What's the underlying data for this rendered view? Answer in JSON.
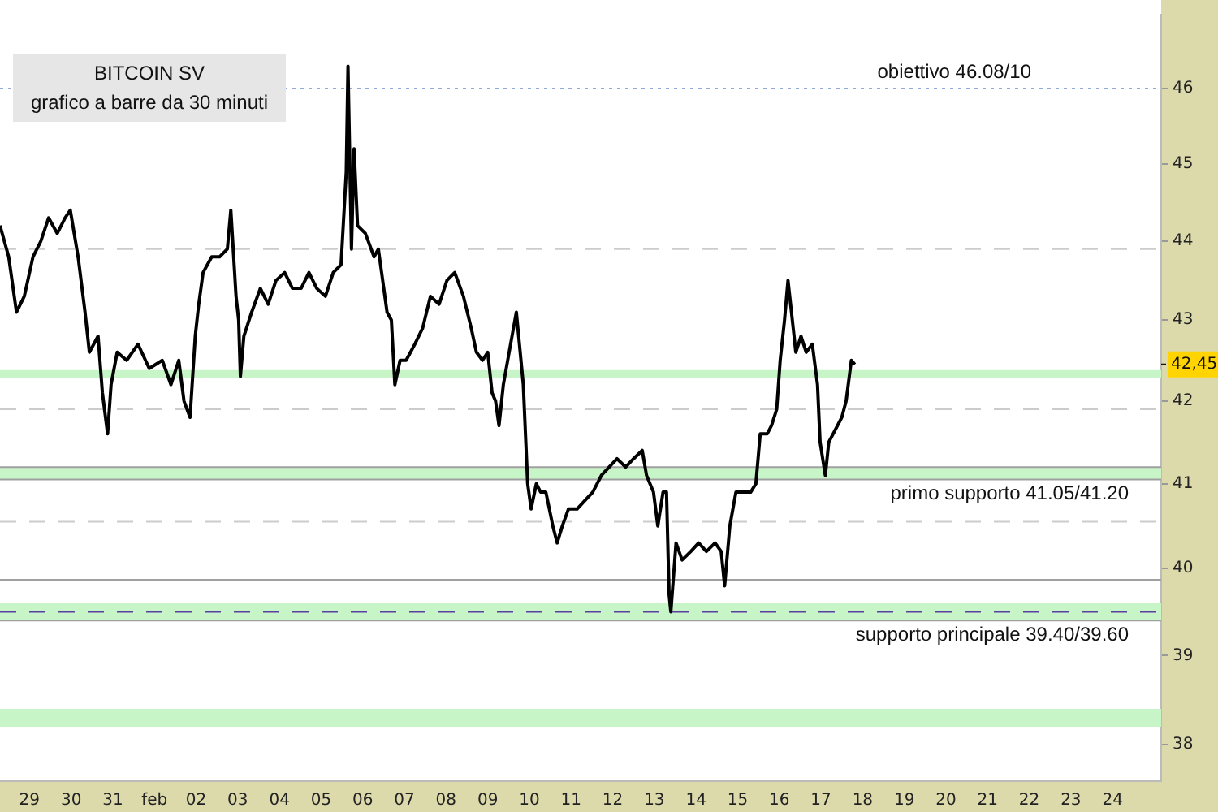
{
  "chart_data": {
    "type": "line",
    "title": "BITCOIN SV",
    "subtitle": "grafico a  barre da 30 minuti",
    "color": "#000000",
    "log": true,
    "x": [
      "--01-28T07:00",
      "--01-28T12:00",
      "--01-28T16:30",
      "--01-28T21:00",
      "--01-29T02:00",
      "--01-29T06:30",
      "--01-29T11:00",
      "--01-29T16:00",
      "--01-29T20:30",
      "--01-29T23:30",
      "--01-30T04:00",
      "--01-30T08:00",
      "--01-30T10:30",
      "--01-30T15:30",
      "--01-30T18:00",
      "--01-30T21:00",
      "--01-30T23:00",
      "--01-31T02:30",
      "--01-31T08:00",
      "--01-31T14:30",
      "--01-31T21:00",
      "--02-01T04:30",
      "--02-01T09:30",
      "--02-01T14:00",
      "--02-01T17:00",
      "--02-01T20:30",
      "--02-01T23:30",
      "--02-02T01:30",
      "--02-02T04:00",
      "--02-02T09:00",
      "--02-02T13:30",
      "--02-02T18:00",
      "--02-02T20:00",
      "--02-02T23:00",
      "--02-03T00:30",
      "--02-03T01:30",
      "--02-03T03:30",
      "--02-03T08:00",
      "--02-03T13:00",
      "--02-03T17:30",
      "--02-03T22:00",
      "--02-04T03:00",
      "--02-04T07:30",
      "--02-04T12:30",
      "--02-04T17:00",
      "--02-04T21:30",
      "--02-05T02:30",
      "--02-05T07:00",
      "--02-05T11:30",
      "--02-05T14:30",
      "--02-05T15:30",
      "--02-05T17:30",
      "--02-05T19:00",
      "--02-05T21:00",
      "--02-06T01:30",
      "--02-06T06:30",
      "--02-06T09:00",
      "--02-06T14:00",
      "--02-06T16:30",
      "--02-06T18:30",
      "--02-06T21:30",
      "--02-07T01:00",
      "--02-07T06:00",
      "--02-07T10:30",
      "--02-07T15:00",
      "--02-07T20:00",
      "--02-08T00:30",
      "--02-08T05:00",
      "--02-08T10:00",
      "--02-08T14:30",
      "--02-08T17:30",
      "--02-08T21:00",
      "--02-09T00:00",
      "--02-09T02:30",
      "--02-09T04:30",
      "--02-09T06:30",
      "--02-09T09:00",
      "--02-09T14:00",
      "--02-09T16:30",
      "--02-09T20:30",
      "--02-09T23:00",
      "--02-10T01:00",
      "--02-10T04:00",
      "--02-10T06:30",
      "--02-10T09:30",
      "--02-10T13:30",
      "--02-10T16:00",
      "--02-10T19:00",
      "--02-10T22:30",
      "--02-11T03:30",
      "--02-11T08:00",
      "--02-11T12:30",
      "--02-11T17:30",
      "--02-11T22:00",
      "--02-12T02:30",
      "--02-12T07:30",
      "--02-12T12:00",
      "--02-12T17:00",
      "--02-12T19:30",
      "--02-12T23:30",
      "--02-13T02:00",
      "--02-13T05:00",
      "--02-13T07:00",
      "--02-13T08:30",
      "--02-13T09:30",
      "--02-13T12:30",
      "--02-13T16:00",
      "--02-13T21:00",
      "--02-14T01:30",
      "--02-14T06:00",
      "--02-14T11:00",
      "--02-14T14:30",
      "--02-14T16:30",
      "--02-14T19:30",
      "--02-14T23:00",
      "--02-15T03:00",
      "--02-15T07:30",
      "--02-15T10:30",
      "--02-15T13:00",
      "--02-15T17:00",
      "--02-15T19:30",
      "--02-15T22:30",
      "--02-16T00:30",
      "--02-16T03:00",
      "--02-16T05:00",
      "--02-16T08:00",
      "--02-16T09:30",
      "--02-16T12:30",
      "--02-16T15:30",
      "--02-16T19:00",
      "--02-16T22:00",
      "--02-16T23:30",
      "--02-17T02:30",
      "--02-17T04:30",
      "--02-17T07:00",
      "--02-17T12:00",
      "--02-17T14:30",
      "--02-17T17:30",
      "--02-17T19:30"
    ],
    "values": [
      44.2,
      43.8,
      43.1,
      43.3,
      43.8,
      44.0,
      44.3,
      44.1,
      44.3,
      44.4,
      43.8,
      43.1,
      42.6,
      42.8,
      42.1,
      41.6,
      42.2,
      42.6,
      42.5,
      42.7,
      42.4,
      42.5,
      42.2,
      42.5,
      42.0,
      41.8,
      42.8,
      43.2,
      43.6,
      43.8,
      43.8,
      43.9,
      44.4,
      43.3,
      43.0,
      42.3,
      42.8,
      43.1,
      43.4,
      43.2,
      43.5,
      43.6,
      43.4,
      43.4,
      43.6,
      43.4,
      43.3,
      43.6,
      43.7,
      44.9,
      46.3,
      43.9,
      45.2,
      44.2,
      44.1,
      43.8,
      43.9,
      43.1,
      43.0,
      42.2,
      42.5,
      42.5,
      42.7,
      42.9,
      43.3,
      43.2,
      43.5,
      43.6,
      43.3,
      42.9,
      42.6,
      42.5,
      42.6,
      42.1,
      42.0,
      41.7,
      42.2,
      42.8,
      43.1,
      42.2,
      41.0,
      40.7,
      41.0,
      40.9,
      40.9,
      40.5,
      40.3,
      40.5,
      40.7,
      40.7,
      40.8,
      40.9,
      41.1,
      41.2,
      41.3,
      41.2,
      41.3,
      41.4,
      41.1,
      40.9,
      40.5,
      40.9,
      40.9,
      39.7,
      39.5,
      40.3,
      40.1,
      40.2,
      40.3,
      40.2,
      40.3,
      40.2,
      39.8,
      40.5,
      40.9,
      40.9,
      40.9,
      41.0,
      41.6,
      41.6,
      41.7,
      41.9,
      42.5,
      43.0,
      43.5,
      42.9,
      42.6,
      42.8,
      42.6,
      42.7,
      42.2,
      41.5,
      41.1,
      41.5,
      41.6,
      41.8,
      42.0,
      42.5,
      42.45
    ],
    "xlim": [
      "--01-28T07:00",
      "--02-25T04:00"
    ],
    "xticks": [
      {
        "value": "--01-29",
        "label": "29"
      },
      {
        "value": "--01-30",
        "label": "30"
      },
      {
        "value": "--01-31",
        "label": "31"
      },
      {
        "value": "--02-01",
        "label": "feb"
      },
      {
        "value": "--02-02",
        "label": "02"
      },
      {
        "value": "--02-03",
        "label": "03"
      },
      {
        "value": "--02-04",
        "label": "04"
      },
      {
        "value": "--02-05",
        "label": "05"
      },
      {
        "value": "--02-06",
        "label": "06"
      },
      {
        "value": "--02-07",
        "label": "07"
      },
      {
        "value": "--02-08",
        "label": "08"
      },
      {
        "value": "--02-09",
        "label": "09"
      },
      {
        "value": "--02-10",
        "label": "10"
      },
      {
        "value": "--02-11",
        "label": "11"
      },
      {
        "value": "--02-12",
        "label": "12"
      },
      {
        "value": "--02-13",
        "label": "13"
      },
      {
        "value": "--02-14",
        "label": "14"
      },
      {
        "value": "--02-15",
        "label": "15"
      },
      {
        "value": "--02-16",
        "label": "16"
      },
      {
        "value": "--02-17",
        "label": "17"
      },
      {
        "value": "--02-18",
        "label": "18"
      },
      {
        "value": "--02-19",
        "label": "19"
      },
      {
        "value": "--02-20",
        "label": "20"
      },
      {
        "value": "--02-21",
        "label": "21"
      },
      {
        "value": "--02-22",
        "label": "22"
      },
      {
        "value": "--02-23",
        "label": "23"
      },
      {
        "value": "--02-24",
        "label": "24"
      }
    ],
    "ylim": [
      37.6,
      47
    ],
    "yticks": [
      38,
      39,
      40,
      41,
      42,
      43,
      44,
      45,
      46
    ],
    "ref_lines": [
      {
        "axis": "y",
        "value": 46,
        "label": "obiettivo 46.08/10",
        "color": "#8fa9d9",
        "line_style": "dotted"
      },
      {
        "axis": "y",
        "value": 43.9,
        "color": "#cccccc",
        "line_style": "dashed"
      },
      {
        "axis": "y",
        "value": 41.9,
        "color": "#cccccc",
        "line_style": "dashed"
      },
      {
        "axis": "y",
        "value": 40.55,
        "color": "#cccccc",
        "line_style": "dashed"
      },
      {
        "axis": "y",
        "value": 41.2,
        "color": "#a0a0a0",
        "line_style": "solid"
      },
      {
        "axis": "y",
        "value": 41.05,
        "color": "#a0a0a0",
        "line_style": "solid"
      },
      {
        "axis": "y",
        "value": 39.87,
        "color": "#a0a0a0",
        "line_style": "solid"
      },
      {
        "axis": "y",
        "value": 39.5,
        "color": "#5b3fa0",
        "line_style": "dashed"
      },
      {
        "axis": "y",
        "value": 39.4,
        "color": "#a0a0a0",
        "line_style": "solid"
      }
    ],
    "annotations": [
      "42,45"
    ],
    "bands": [
      {
        "axis": "y",
        "from": 42.28,
        "to": 42.38,
        "color": "#c8f5c8"
      },
      {
        "axis": "y",
        "from": 41.05,
        "to": 41.2,
        "label": "primo supporto 41.05/41.20",
        "color": "#c8f5c8"
      },
      {
        "axis": "y",
        "from": 39.4,
        "to": 39.6,
        "label": "supporto principale 39.40/39.60",
        "color": "#c8f5c8"
      },
      {
        "axis": "y",
        "from": 38.2,
        "to": 38.4,
        "color": "#c8f5c8"
      }
    ],
    "legend": false
  }
}
